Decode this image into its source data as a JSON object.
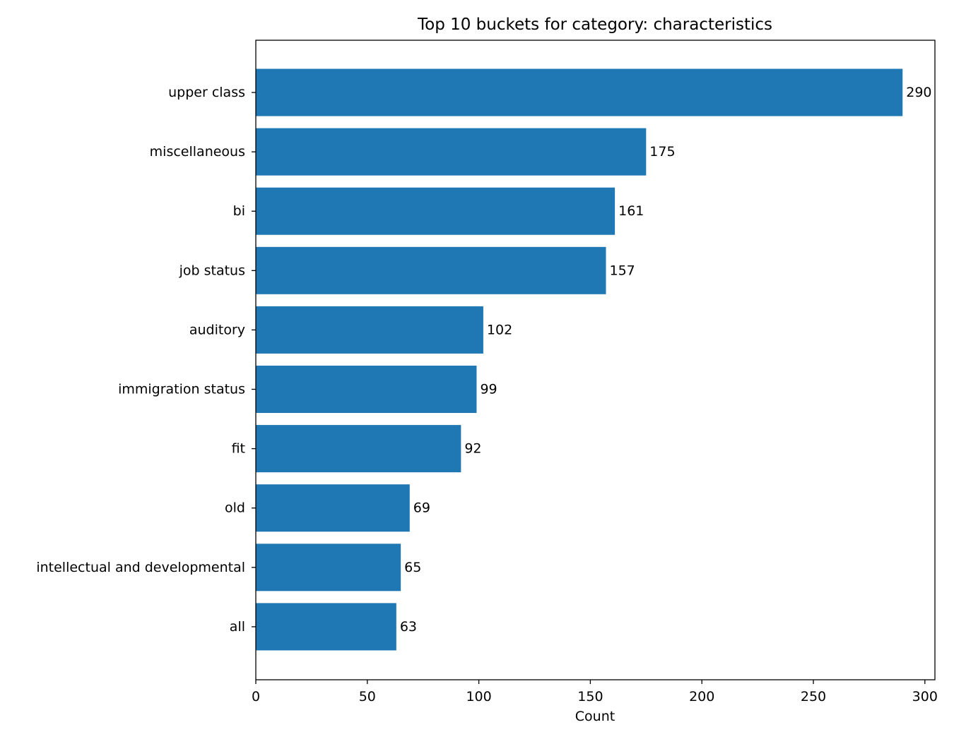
{
  "chart_data": {
    "type": "bar",
    "orientation": "horizontal",
    "title": "Top 10 buckets for category: characteristics",
    "xlabel": "Count",
    "ylabel": "",
    "categories": [
      "upper class",
      "miscellaneous",
      "bi",
      "job status",
      "auditory",
      "immigration status",
      "fit",
      "old",
      "intellectual and developmental",
      "all"
    ],
    "values": [
      290,
      175,
      161,
      157,
      102,
      99,
      92,
      69,
      65,
      63
    ],
    "value_labels": [
      "290",
      "175",
      "161",
      "157",
      "102",
      "99",
      "92",
      "69",
      "65",
      "63"
    ],
    "xlim": [
      0,
      304.5
    ],
    "xticks": [
      0,
      50,
      100,
      150,
      200,
      250,
      300
    ],
    "xtick_labels": [
      "0",
      "50",
      "100",
      "150",
      "200",
      "250",
      "300"
    ],
    "bar_color": "#1f77b4",
    "grid": false,
    "legend": "none"
  }
}
